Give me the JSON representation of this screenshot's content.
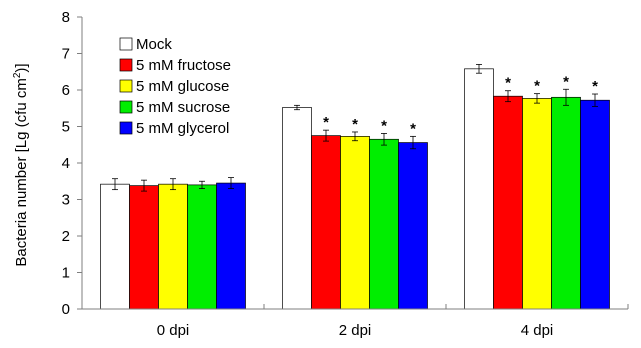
{
  "chart_data": {
    "type": "bar",
    "title": "",
    "xlabel": "",
    "ylabel": "Bacteria number [Lg (cfu cm",
    "ylabel_sup": "2",
    "ylabel_end": ")]",
    "ylim": [
      0,
      8
    ],
    "yticks": [
      "0",
      "1",
      "2",
      "3",
      "4",
      "5",
      "6",
      "7",
      "8"
    ],
    "categories": [
      "0 dpi",
      "2 dpi",
      "4 dpi"
    ],
    "legend_position": "top-left",
    "significance_marker": "*",
    "series": [
      {
        "name": "Mock",
        "color": "#ffffff",
        "values": [
          3.42,
          5.52,
          6.58
        ],
        "errors": [
          0.15,
          0.06,
          0.12
        ],
        "significant": [
          false,
          false,
          false
        ]
      },
      {
        "name": "5 mM fructose",
        "color": "#ff0000",
        "values": [
          3.38,
          4.75,
          5.83
        ],
        "errors": [
          0.15,
          0.15,
          0.15
        ],
        "significant": [
          false,
          true,
          true
        ]
      },
      {
        "name": "5 mM glucose",
        "color": "#ffff00",
        "values": [
          3.42,
          4.73,
          5.77
        ],
        "errors": [
          0.15,
          0.12,
          0.13
        ],
        "significant": [
          false,
          true,
          true
        ]
      },
      {
        "name": "5 mM sucrose",
        "color": "#00ee00",
        "values": [
          3.4,
          4.65,
          5.8
        ],
        "errors": [
          0.1,
          0.16,
          0.22
        ],
        "significant": [
          false,
          true,
          true
        ]
      },
      {
        "name": "5 mM glycerol",
        "color": "#0000ff",
        "values": [
          3.45,
          4.56,
          5.72
        ],
        "errors": [
          0.15,
          0.17,
          0.17
        ],
        "significant": [
          false,
          true,
          true
        ]
      }
    ]
  }
}
